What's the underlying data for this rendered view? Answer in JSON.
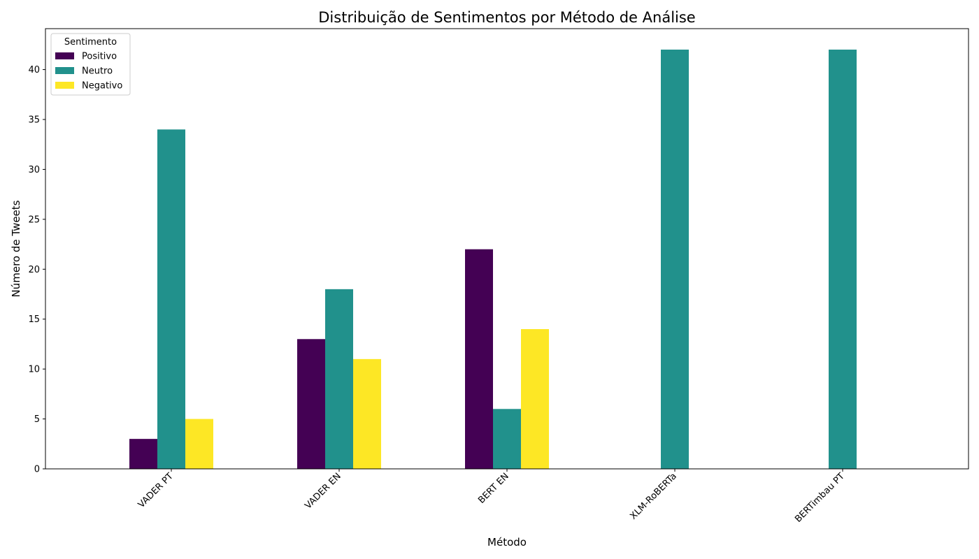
{
  "chart_data": {
    "type": "bar",
    "title": "Distribuição de Sentimentos por Método de Análise",
    "xlabel": "Método",
    "ylabel": "Número de Tweets",
    "categories": [
      "VADER PT",
      "VADER EN",
      "BERT EN",
      "XLM-RoBERTa",
      "BERTimbau PT"
    ],
    "series": [
      {
        "name": "Positivo",
        "color": "#440154",
        "values": [
          3,
          13,
          22,
          0,
          0
        ]
      },
      {
        "name": "Neutro",
        "color": "#21918c",
        "values": [
          34,
          18,
          6,
          42,
          42
        ]
      },
      {
        "name": "Negativo",
        "color": "#fde725",
        "values": [
          5,
          11,
          14,
          0,
          0
        ]
      }
    ],
    "ylim": [
      0,
      44.1
    ],
    "yticks": [
      0,
      5,
      10,
      15,
      20,
      25,
      30,
      35,
      40
    ],
    "grid": false,
    "legend": {
      "title": "Sentimento",
      "position": "top-left"
    }
  }
}
